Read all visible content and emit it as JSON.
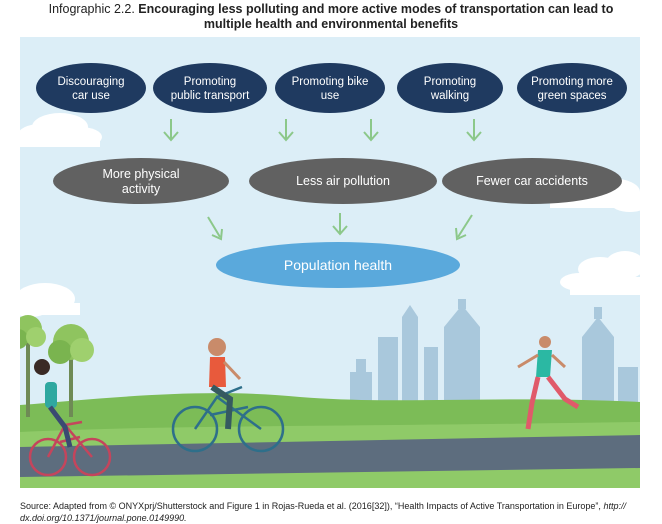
{
  "title": {
    "prefix": "Infographic 2.2.",
    "bold_line1": "Encouraging less polluting and more active modes of transportation can lead to",
    "bold_line2": "multiple health and environmental benefits"
  },
  "top_row": [
    {
      "line1": "Discouraging",
      "line2": "car use"
    },
    {
      "line1": "Promoting",
      "line2": "public transport"
    },
    {
      "line1": "Promoting bike",
      "line2": "use"
    },
    {
      "line1": "Promoting",
      "line2": "walking"
    },
    {
      "line1": "Promoting more",
      "line2": "green spaces"
    }
  ],
  "middle_row": [
    {
      "line1": "More physical",
      "line2": "activity"
    },
    {
      "line1": "Less air pollution",
      "line2": ""
    },
    {
      "line1": "Fewer car accidents",
      "line2": ""
    }
  ],
  "outcome": "Population health",
  "source": {
    "text": "Source: Adapted from © ONYXprj/Shutterstock and Figure 1 in Rojas-Rueda et al. (2016[32]), “Health Impacts of Active Transportation in Europe”, ",
    "link_part1": "http://",
    "link_part2": "dx.doi.org/10.1371/journal.pone.0149990."
  },
  "colors": {
    "sky": "#dceef7",
    "top_ellipse": "#1f3a60",
    "middle_ellipse": "#616161",
    "outcome_ellipse": "#5aa9dc",
    "arrow": "#8cc88a",
    "grass": "#7cbc57",
    "road": "#5d6d7e",
    "cloud": "#ffffff",
    "building": "#a9c8dc"
  }
}
